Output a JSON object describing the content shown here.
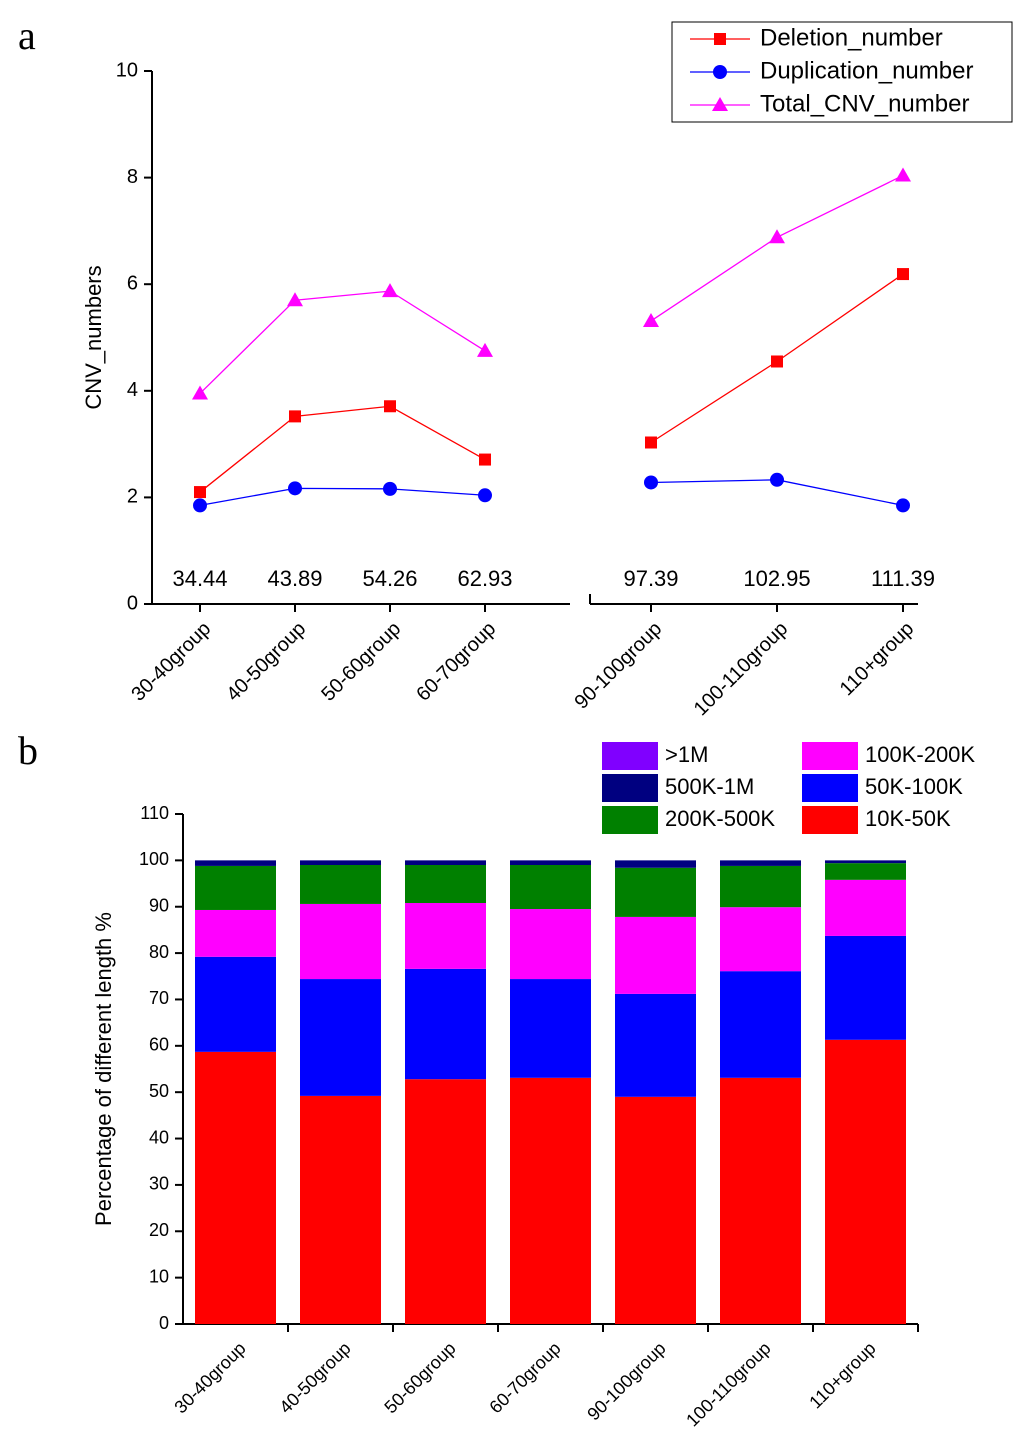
{
  "chart_data": [
    {
      "type": "line",
      "panel": "a",
      "ylabel": "CNV_numbers",
      "categories": [
        "30-40group",
        "40-50group",
        "50-60group",
        "60-70group",
        null,
        "90-100group",
        "100-110group",
        "110+group"
      ],
      "annotations": [
        34.44,
        43.89,
        54.26,
        62.93,
        null,
        97.39,
        102.95,
        111.39
      ],
      "series": [
        {
          "name": "Deletion_number",
          "color": "#ff0000",
          "marker": "square",
          "values": [
            2.1,
            3.52,
            3.71,
            2.71,
            null,
            3.03,
            4.55,
            6.19
          ]
        },
        {
          "name": "Duplication_number",
          "color": "#0000ff",
          "marker": "circle",
          "values": [
            1.85,
            2.17,
            2.16,
            2.04,
            null,
            2.28,
            2.33,
            1.85
          ]
        },
        {
          "name": "Total_CNV_number",
          "color": "#ff00ff",
          "marker": "triangle",
          "values": [
            3.95,
            5.7,
            5.87,
            4.75,
            null,
            5.31,
            6.88,
            8.04
          ]
        }
      ],
      "ylim": [
        0,
        10
      ],
      "yticks": [
        0,
        2,
        4,
        6,
        8,
        10
      ],
      "legend": "top-right"
    },
    {
      "type": "stacked-bar",
      "panel": "b",
      "ylabel": "Percentage of different length %",
      "categories": [
        "30-40group",
        "40-50group",
        "50-60group",
        "60-70group",
        "90-100group",
        "100-110group",
        "110+group"
      ],
      "series": [
        {
          "name": ">1M",
          "color": "#8000ff",
          "values": [
            0,
            0,
            0,
            0,
            0,
            0,
            0
          ]
        },
        {
          "name": "500K-1M",
          "color": "#000080",
          "values": [
            1.2,
            1.0,
            1.0,
            1.0,
            1.6,
            1.2,
            0.6
          ]
        },
        {
          "name": "200K-500K",
          "color": "#008000",
          "values": [
            9.5,
            8.4,
            8.2,
            9.5,
            10.6,
            8.9,
            3.6
          ]
        },
        {
          "name": "100K-200K",
          "color": "#ff00ff",
          "values": [
            10.1,
            16.2,
            14.2,
            15.1,
            16.6,
            13.8,
            12.1
          ]
        },
        {
          "name": "50K-100K",
          "color": "#0000ff",
          "values": [
            20.5,
            25.2,
            23.8,
            21.3,
            22.2,
            23.0,
            22.4
          ]
        },
        {
          "name": "10K-50K",
          "color": "#ff0000",
          "values": [
            58.7,
            49.2,
            52.8,
            53.1,
            49.0,
            53.1,
            61.3
          ]
        }
      ],
      "ylim": [
        0,
        110
      ],
      "yticks": [
        0,
        10,
        20,
        30,
        40,
        50,
        60,
        70,
        80,
        90,
        100,
        110
      ],
      "legend": "top-right"
    }
  ]
}
